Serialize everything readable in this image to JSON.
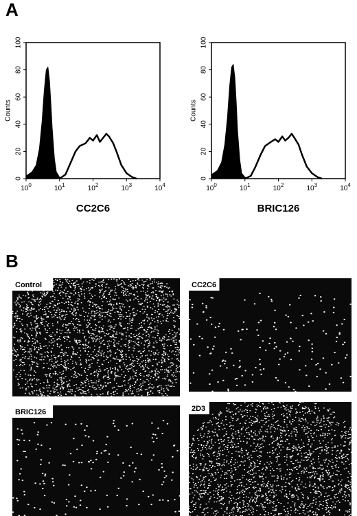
{
  "panel_a_label": "A",
  "panel_b_label": "B",
  "chart_data": [
    {
      "type": "histogram",
      "xscale": "log",
      "ylabel": "Counts",
      "xlabel": "CC2C6",
      "xlim": [
        1,
        10000
      ],
      "ylim": [
        0,
        100
      ],
      "xticks": [
        {
          "value": 1,
          "label": "10^0"
        },
        {
          "value": 10,
          "label": "10^1"
        },
        {
          "value": 100,
          "label": "10^2"
        },
        {
          "value": 1000,
          "label": "10^3"
        },
        {
          "value": 10000,
          "label": "10^4"
        }
      ],
      "yticks": [
        0,
        20,
        40,
        60,
        80,
        100
      ],
      "series": [
        {
          "color": "#000000",
          "filled": true,
          "x": [
            1,
            1.5,
            2,
            2.5,
            3,
            3.5,
            4,
            4.5,
            5,
            5.5,
            6,
            7,
            8,
            10,
            12,
            15
          ],
          "values": [
            2,
            5,
            10,
            22,
            42,
            65,
            80,
            82,
            72,
            55,
            38,
            15,
            5,
            1,
            0,
            0
          ]
        },
        {
          "color": "#000000",
          "filled": false,
          "x": [
            10,
            15,
            20,
            30,
            40,
            60,
            80,
            100,
            130,
            160,
            200,
            250,
            300,
            400,
            500,
            700,
            1000,
            1500,
            2000
          ],
          "values": [
            0,
            3,
            10,
            20,
            24,
            26,
            30,
            28,
            32,
            27,
            30,
            33,
            31,
            26,
            20,
            10,
            4,
            1,
            0
          ]
        }
      ]
    },
    {
      "type": "histogram",
      "xscale": "log",
      "ylabel": "Counts",
      "xlabel": "BRIC126",
      "xlim": [
        1,
        10000
      ],
      "ylim": [
        0,
        100
      ],
      "xticks": [
        {
          "value": 1,
          "label": "10^0"
        },
        {
          "value": 10,
          "label": "10^1"
        },
        {
          "value": 100,
          "label": "10^2"
        },
        {
          "value": 1000,
          "label": "10^3"
        },
        {
          "value": 10000,
          "label": "10^4"
        }
      ],
      "yticks": [
        0,
        20,
        40,
        60,
        80,
        100
      ],
      "series": [
        {
          "color": "#000000",
          "filled": true,
          "x": [
            1,
            1.5,
            2,
            2.5,
            3,
            3.5,
            4,
            4.5,
            5,
            5.5,
            6,
            7,
            8,
            10,
            12,
            15
          ],
          "values": [
            3,
            6,
            12,
            25,
            45,
            68,
            82,
            84,
            74,
            56,
            36,
            14,
            4,
            1,
            0,
            0
          ]
        },
        {
          "color": "#000000",
          "filled": false,
          "x": [
            10,
            15,
            20,
            30,
            40,
            60,
            80,
            100,
            130,
            160,
            200,
            250,
            300,
            400,
            500,
            700,
            1000,
            1500,
            2000
          ],
          "values": [
            0,
            2,
            8,
            18,
            24,
            27,
            29,
            27,
            31,
            28,
            30,
            33,
            30,
            25,
            18,
            9,
            4,
            1,
            0
          ]
        }
      ]
    }
  ],
  "images": [
    {
      "label": "Control",
      "pattern": "dense"
    },
    {
      "label": "CC2C6",
      "pattern": "sparse"
    },
    {
      "label": "BRIC126",
      "pattern": "sparse"
    },
    {
      "label": "2D3",
      "pattern": "dense"
    }
  ]
}
